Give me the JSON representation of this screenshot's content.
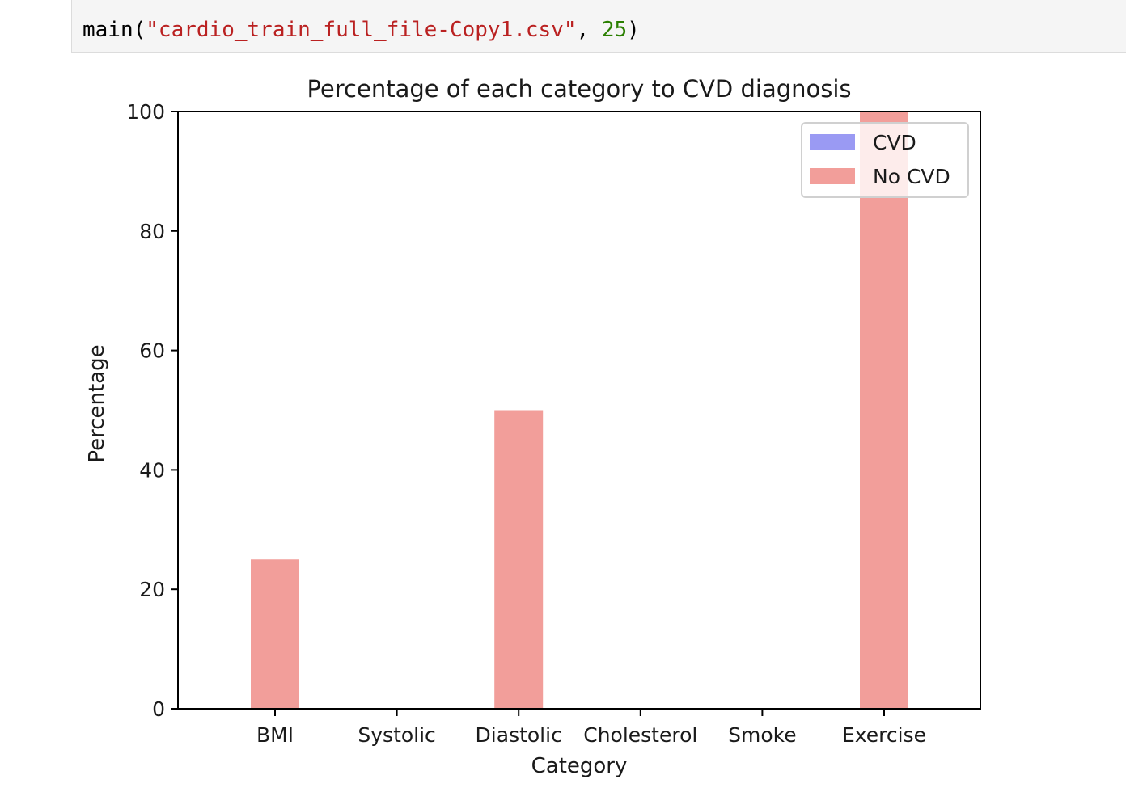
{
  "code_cell": {
    "func": "main",
    "open_paren": "(",
    "string_arg": "\"cardio_train_full_file-Copy1.csv\"",
    "separator": ", ",
    "number_arg": "25",
    "close_paren": ")"
  },
  "chart_data": {
    "type": "bar",
    "title": "Percentage of each category to CVD diagnosis",
    "xlabel": "Category",
    "ylabel": "Percentage",
    "categories": [
      "BMI",
      "Systolic",
      "Diastolic",
      "Cholesterol",
      "Smoke",
      "Exercise"
    ],
    "ylim": [
      0,
      100
    ],
    "yticks": [
      0,
      20,
      40,
      60,
      80,
      100
    ],
    "series": [
      {
        "name": "CVD",
        "color": "#9a9af3",
        "values": [
          0,
          0,
          0,
          0,
          0,
          0
        ]
      },
      {
        "name": "No CVD",
        "color": "#f29e9a",
        "values": [
          25,
          0,
          50,
          0,
          0,
          100
        ]
      }
    ],
    "legend_position": "top-right",
    "grid": false
  }
}
